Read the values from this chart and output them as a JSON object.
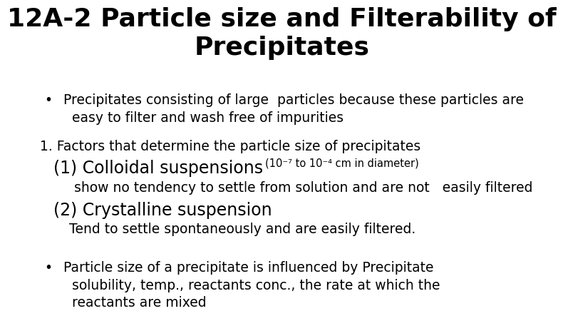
{
  "background_color": "#ffffff",
  "title_line1": "12A-2 Particle size and Filterability of",
  "title_line2": "Precipitates",
  "title_fontsize": 26,
  "bullet1_text1": "Precipitates consisting of large  particles because these particles are",
  "bullet1_text2": "  easy to filter and wash free of impurities",
  "numbered_text": "1. Factors that determine the particle size of precipitates",
  "colloidal_main": "(1) Colloidal suspensions ",
  "colloidal_sub": "(10⁻⁷ to 10⁻⁴ cm in diameter)",
  "colloidal_detail": "show no tendency to settle from solution and are not   easily filtered",
  "crystalline_main": "(2) Crystalline suspension",
  "crystalline_detail": "Tend to settle spontaneously and are easily filtered.",
  "bullet2_text1": "Particle size of a precipitate is influenced by Precipitate",
  "bullet2_text2": "  solubility, temp., reactants conc., the rate at which the",
  "bullet2_text3": "  reactants are mixed",
  "body_fontsize": 13.5,
  "heading_fontsize": 17,
  "sub_fontsize": 10.5,
  "text_color": "#000000"
}
